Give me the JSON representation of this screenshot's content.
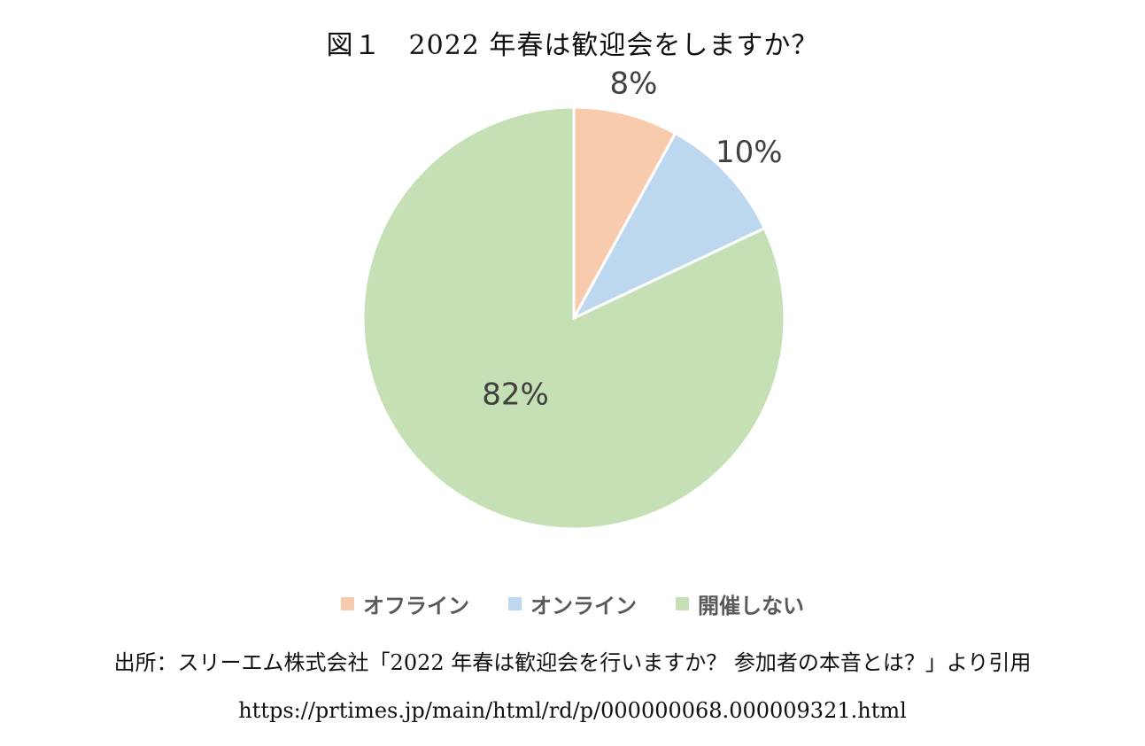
{
  "chart_data": {
    "type": "pie",
    "title": "図１　2022 年春は歓迎会をしますか？",
    "categories": [
      "オフライン",
      "オンライン",
      "開催しない"
    ],
    "values": [
      8,
      10,
      82
    ],
    "labels": [
      "8%",
      "10%",
      "82%"
    ],
    "colors": [
      "#f8cbad",
      "#bdd7ee",
      "#c5e0b4"
    ],
    "legend_position": "bottom"
  },
  "source": "出所：スリーエム株式会社「2022 年春は歓迎会を行いますか？ 参加者の本音とは？」より引用",
  "url": "https://prtimes.jp/main/html/rd/p/000000068.000009321.html"
}
